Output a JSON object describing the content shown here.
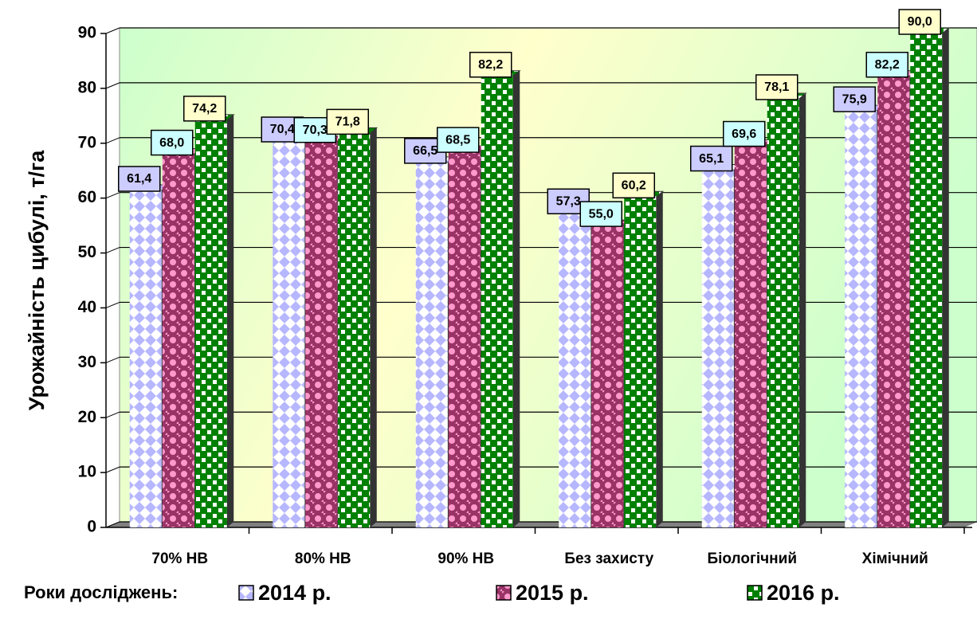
{
  "chart_data": {
    "type": "bar",
    "y_label": "Урожайність цибулі, т/га",
    "legend_title": "Роки досліджень:",
    "categories": [
      "70% НВ",
      "80% НВ",
      "90% НВ",
      "Без захисту",
      "Біологічний",
      "Хімічний"
    ],
    "series": [
      {
        "name": "2014 р.",
        "color": "#9999ff",
        "values": [
          61.4,
          70.4,
          66.5,
          57.3,
          65.1,
          75.9
        ],
        "value_labels": [
          "61,4",
          "70,4",
          "66,5",
          "57,3",
          "65,1",
          "75,9"
        ]
      },
      {
        "name": "2015 р.",
        "color": "#993366",
        "values": [
          68.0,
          70.3,
          68.5,
          55.0,
          69.6,
          82.2
        ],
        "value_labels": [
          "68,0",
          "70,3",
          "68,5",
          "55,0",
          "69,6",
          "82,2"
        ]
      },
      {
        "name": "2016 р.",
        "color": "#008000",
        "values": [
          74.2,
          71.8,
          82.2,
          60.2,
          78.1,
          90.0
        ],
        "value_labels": [
          "74,2",
          "71,8",
          "82,2",
          "60,2",
          "78,1",
          "90,0"
        ]
      }
    ],
    "ylim": [
      0,
      90
    ],
    "yticks": [
      0,
      10,
      20,
      30,
      40,
      50,
      60,
      70,
      80,
      90
    ],
    "grid": true
  }
}
